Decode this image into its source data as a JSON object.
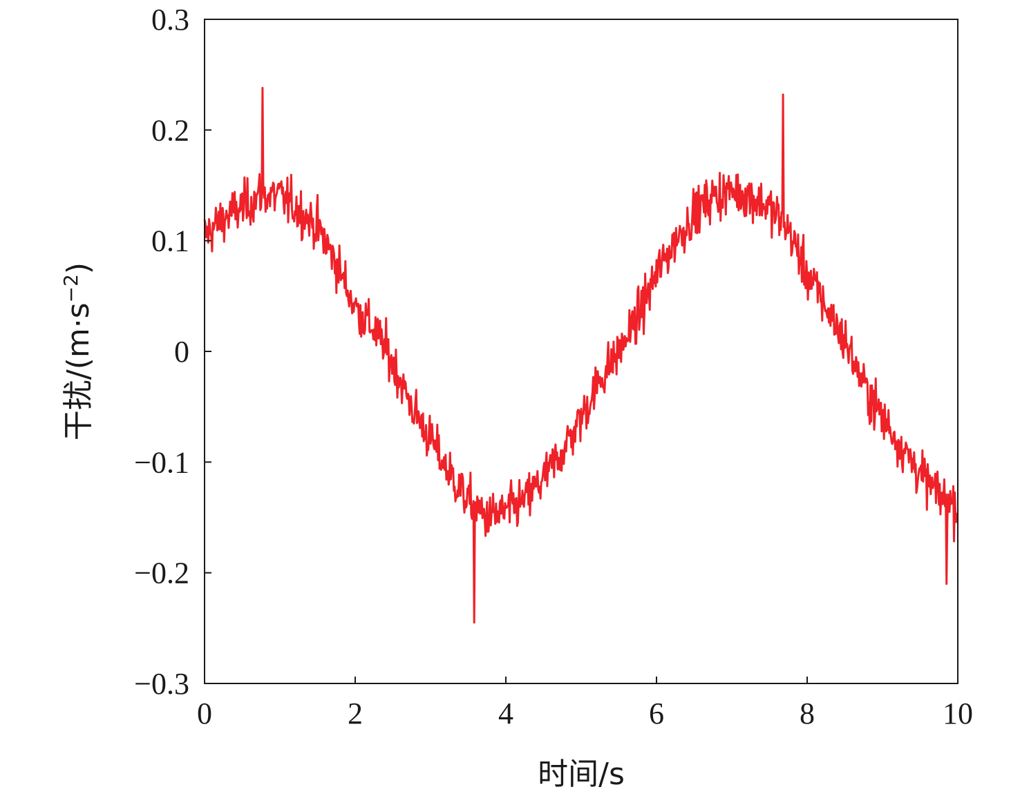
{
  "chart_data": {
    "type": "line",
    "xlabel": "时间/s",
    "ylabel": "干扰/(m·s⁻²)",
    "ylabel_parts": {
      "prefix": "干扰/(m·s",
      "sup": "−2",
      "suffix": ")"
    },
    "xlim": [
      0,
      10
    ],
    "ylim": [
      -0.3,
      0.3
    ],
    "x_ticks": [
      0,
      2,
      4,
      6,
      8,
      10
    ],
    "x_tick_labels": [
      "0",
      "2",
      "4",
      "6",
      "8",
      "10"
    ],
    "y_ticks": [
      -0.3,
      -0.2,
      -0.1,
      0,
      0.1,
      0.2,
      0.3
    ],
    "y_tick_labels": [
      "−0.3",
      "−0.2",
      "−0.1",
      "0",
      "0.1",
      "0.2",
      "0.3"
    ],
    "grid": false,
    "legend": "none",
    "color": "#ee2228",
    "series": [
      {
        "x": [
          0.0,
          0.25,
          0.5,
          0.75,
          1.0,
          1.25,
          1.5,
          1.75,
          2.0,
          2.25,
          2.5,
          2.75,
          3.0,
          3.25,
          3.5,
          3.75,
          4.0,
          4.25,
          4.5,
          4.75,
          5.0,
          5.25,
          5.5,
          5.75,
          6.0,
          6.25,
          6.5,
          6.75,
          7.0,
          7.25,
          7.5,
          7.75,
          8.0,
          8.25,
          8.5,
          8.75,
          9.0,
          9.25,
          9.5,
          9.75,
          10.0
        ],
        "y": [
          0.105,
          0.12,
          0.13,
          0.142,
          0.14,
          0.128,
          0.112,
          0.08,
          0.04,
          0.02,
          -0.01,
          -0.05,
          -0.08,
          -0.11,
          -0.135,
          -0.15,
          -0.145,
          -0.135,
          -0.115,
          -0.09,
          -0.06,
          -0.025,
          0.0,
          0.03,
          0.07,
          0.1,
          0.125,
          0.14,
          0.145,
          0.14,
          0.13,
          0.11,
          0.07,
          0.04,
          0.01,
          -0.03,
          -0.06,
          -0.085,
          -0.11,
          -0.13,
          -0.14
        ]
      }
    ],
    "annotations": [
      {
        "x": 0.77,
        "y": 0.238
      },
      {
        "x": 7.68,
        "y": 0.232
      },
      {
        "x": 3.58,
        "y": -0.245
      },
      {
        "x": 9.85,
        "y": -0.21
      }
    ]
  }
}
